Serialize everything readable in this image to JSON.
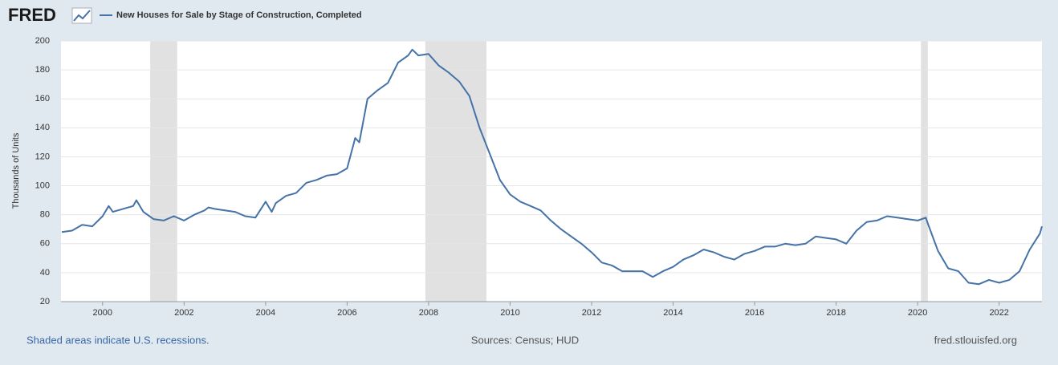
{
  "chart_data": {
    "type": "line",
    "logo": "FRED",
    "title": "New Houses for Sale by Stage of Construction, Completed",
    "y_label": "Thousands of Units",
    "footer_left": "Shaded areas indicate U.S. recessions.",
    "footer_center": "Sources: Census; HUD",
    "footer_right": "fred.stlouisfed.org",
    "x": [
      1999.0,
      1999.25,
      1999.5,
      1999.75,
      2000.0,
      2000.15,
      2000.25,
      2000.5,
      2000.75,
      2000.83,
      2001.0,
      2001.25,
      2001.5,
      2001.75,
      2002.0,
      2002.25,
      2002.5,
      2002.6,
      2002.75,
      2003.0,
      2003.25,
      2003.5,
      2003.75,
      2004.0,
      2004.15,
      2004.25,
      2004.5,
      2004.75,
      2005.0,
      2005.25,
      2005.5,
      2005.75,
      2006.0,
      2006.2,
      2006.3,
      2006.5,
      2006.75,
      2007.0,
      2007.25,
      2007.5,
      2007.6,
      2007.75,
      2008.0,
      2008.25,
      2008.5,
      2008.75,
      2009.0,
      2009.25,
      2009.5,
      2009.75,
      2010.0,
      2010.25,
      2010.5,
      2010.75,
      2011.0,
      2011.25,
      2011.5,
      2011.75,
      2012.0,
      2012.25,
      2012.5,
      2012.75,
      2013.0,
      2013.25,
      2013.5,
      2013.75,
      2014.0,
      2014.25,
      2014.5,
      2014.75,
      2015.0,
      2015.25,
      2015.5,
      2015.75,
      2016.0,
      2016.25,
      2016.5,
      2016.75,
      2017.0,
      2017.25,
      2017.5,
      2017.75,
      2018.0,
      2018.25,
      2018.5,
      2018.75,
      2019.0,
      2019.25,
      2019.5,
      2019.75,
      2020.0,
      2020.2,
      2020.25,
      2020.5,
      2020.75,
      2021.0,
      2021.25,
      2021.5,
      2021.75,
      2022.0,
      2022.25,
      2022.5,
      2022.75,
      2023.0,
      2023.05
    ],
    "series": [
      {
        "name": "New Houses for Sale by Stage of Construction, Completed",
        "color": "#4572a7",
        "values": [
          68,
          69,
          73,
          72,
          79,
          86,
          82,
          84,
          86,
          90,
          82,
          77,
          76,
          79,
          76,
          80,
          83,
          85,
          84,
          83,
          82,
          79,
          78,
          89,
          82,
          88,
          93,
          95,
          102,
          104,
          107,
          108,
          112,
          133,
          130,
          160,
          166,
          171,
          185,
          190,
          194,
          190,
          191,
          183,
          178,
          172,
          162,
          140,
          122,
          104,
          94,
          89,
          86,
          83,
          76,
          70,
          65,
          60,
          54,
          47,
          45,
          41,
          41,
          41,
          37,
          41,
          44,
          49,
          52,
          56,
          54,
          51,
          49,
          53,
          55,
          58,
          58,
          60,
          59,
          60,
          65,
          64,
          63,
          60,
          69,
          75,
          76,
          79,
          78,
          77,
          76,
          78,
          74,
          55,
          43,
          41,
          33,
          32,
          35,
          33,
          35,
          41,
          56,
          67,
          72
        ]
      }
    ],
    "recessions": [
      [
        2001.17,
        2001.83
      ],
      [
        2007.92,
        2009.42
      ],
      [
        2020.08,
        2020.25
      ]
    ],
    "xlim": [
      1998.98,
      2023.05
    ],
    "xticks": [
      2000,
      2002,
      2004,
      2006,
      2008,
      2010,
      2012,
      2014,
      2016,
      2018,
      2020,
      2022
    ],
    "ylim": [
      20,
      200
    ],
    "yticks": [
      20,
      40,
      60,
      80,
      100,
      120,
      140,
      160,
      180,
      200
    ],
    "grid": true
  }
}
